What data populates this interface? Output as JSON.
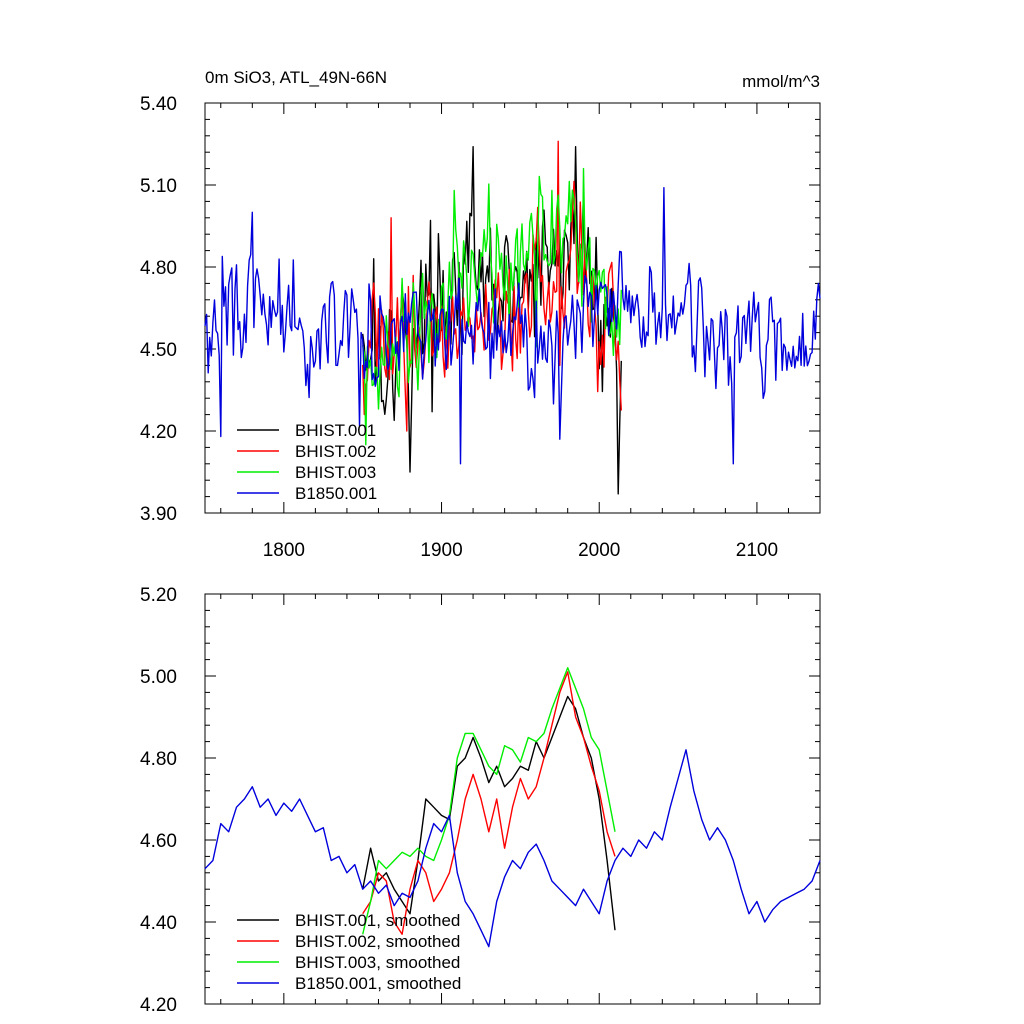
{
  "colors": {
    "BHIST.001": "#000000",
    "BHIST.002": "#ff0000",
    "BHIST.003": "#00ee00",
    "B1850.001": "#0000dd"
  },
  "chart_data": [
    {
      "type": "line",
      "title": "0m SiO3, ATL_49N-66N",
      "units": "mmol/m^3",
      "xlim": [
        1750,
        2140
      ],
      "ylim": [
        3.9,
        5.4
      ],
      "yticks": [
        3.9,
        4.2,
        4.5,
        4.8,
        5.1,
        5.4
      ],
      "ytick_labels": [
        "3.90",
        "4.20",
        "4.50",
        "4.80",
        "5.10",
        "5.40"
      ],
      "xticks": [
        1800,
        1900,
        2000,
        2100
      ],
      "xtick_labels": [
        "1800",
        "1900",
        "2000",
        "2100"
      ],
      "legend_position": "bottom-left",
      "series": [
        {
          "name": "BHIST.001",
          "x_start": 1850,
          "x_end": 2014,
          "mean": [
            [
              1850,
              4.55
            ],
            [
              1870,
              4.48
            ],
            [
              1890,
              4.62
            ],
            [
              1910,
              4.75
            ],
            [
              1930,
              4.72
            ],
            [
              1950,
              4.7
            ],
            [
              1970,
              4.8
            ],
            [
              1985,
              4.9
            ],
            [
              2000,
              4.7
            ],
            [
              2014,
              4.45
            ]
          ],
          "sd": 0.17,
          "extremes": [
            [
              1920,
              5.24
            ],
            [
              1985,
              5.24
            ],
            [
              1880,
              4.05
            ],
            [
              2012,
              3.97
            ],
            [
              1857,
              4.83
            ],
            [
              1893,
              4.97
            ]
          ]
        },
        {
          "name": "BHIST.002",
          "x_start": 1850,
          "x_end": 2014,
          "mean": [
            [
              1850,
              4.52
            ],
            [
              1870,
              4.5
            ],
            [
              1890,
              4.55
            ],
            [
              1910,
              4.65
            ],
            [
              1930,
              4.62
            ],
            [
              1950,
              4.62
            ],
            [
              1970,
              4.72
            ],
            [
              1985,
              4.85
            ],
            [
              2000,
              4.6
            ],
            [
              2014,
              4.5
            ]
          ],
          "sd": 0.16,
          "extremes": [
            [
              1974,
              5.26
            ],
            [
              1868,
              4.98
            ],
            [
              1878,
              4.2
            ]
          ]
        },
        {
          "name": "BHIST.003",
          "x_start": 1850,
          "x_end": 2014,
          "mean": [
            [
              1850,
              4.45
            ],
            [
              1870,
              4.48
            ],
            [
              1890,
              4.62
            ],
            [
              1910,
              4.78
            ],
            [
              1930,
              4.8
            ],
            [
              1950,
              4.75
            ],
            [
              1970,
              4.88
            ],
            [
              1985,
              4.95
            ],
            [
              2000,
              4.75
            ],
            [
              2014,
              4.5
            ]
          ],
          "sd": 0.16,
          "extremes": [
            [
              1970,
              5.08
            ],
            [
              1990,
              5.16
            ],
            [
              1908,
              5.08
            ],
            [
              1852,
              4.15
            ]
          ]
        },
        {
          "name": "B1850.001",
          "x_start": 1750,
          "x_end": 2140,
          "mean": [
            [
              1750,
              4.6
            ],
            [
              1780,
              4.65
            ],
            [
              1800,
              4.62
            ],
            [
              1830,
              4.55
            ],
            [
              1860,
              4.55
            ],
            [
              1900,
              4.58
            ],
            [
              1930,
              4.52
            ],
            [
              1960,
              4.55
            ],
            [
              1980,
              4.52
            ],
            [
              2000,
              4.6
            ],
            [
              2040,
              4.65
            ],
            [
              2070,
              4.58
            ],
            [
              2100,
              4.5
            ],
            [
              2140,
              4.55
            ]
          ],
          "sd": 0.13,
          "extremes": [
            [
              1780,
              5.0
            ],
            [
              2041,
              5.09
            ],
            [
              1760,
              4.18
            ],
            [
              1912,
              4.08
            ],
            [
              2085,
              4.08
            ],
            [
              1975,
              4.17
            ],
            [
              1848,
              4.22
            ]
          ]
        }
      ]
    },
    {
      "type": "line",
      "title": "",
      "xlim": [
        1750,
        2140
      ],
      "ylim": [
        4.2,
        5.2
      ],
      "yticks": [
        4.2,
        4.4,
        4.6,
        4.8,
        5.0,
        5.2
      ],
      "ytick_labels": [
        "4.20",
        "4.40",
        "4.60",
        "4.80",
        "5.00",
        "5.20"
      ],
      "xticks": [
        1800,
        1900,
        2000,
        2100
      ],
      "legend_position": "bottom-left",
      "series": [
        {
          "name": "BHIST.001, smoothed",
          "x": [
            1850,
            1855,
            1860,
            1865,
            1870,
            1875,
            1880,
            1885,
            1890,
            1895,
            1900,
            1905,
            1910,
            1915,
            1920,
            1925,
            1930,
            1935,
            1940,
            1945,
            1950,
            1955,
            1960,
            1965,
            1970,
            1975,
            1980,
            1985,
            1990,
            1995,
            2000,
            2005,
            2010
          ],
          "y": [
            4.48,
            4.58,
            4.5,
            4.52,
            4.48,
            4.45,
            4.42,
            4.55,
            4.7,
            4.68,
            4.66,
            4.65,
            4.78,
            4.8,
            4.85,
            4.8,
            4.74,
            4.78,
            4.73,
            4.75,
            4.78,
            4.77,
            4.84,
            4.8,
            4.85,
            4.9,
            4.95,
            4.92,
            4.85,
            4.8,
            4.7,
            4.55,
            4.38
          ]
        },
        {
          "name": "BHIST.002, smoothed",
          "x": [
            1850,
            1855,
            1860,
            1865,
            1870,
            1875,
            1880,
            1885,
            1890,
            1895,
            1900,
            1905,
            1910,
            1915,
            1920,
            1925,
            1930,
            1935,
            1940,
            1945,
            1950,
            1955,
            1960,
            1965,
            1970,
            1975,
            1980,
            1985,
            1990,
            1995,
            2000,
            2005,
            2010
          ],
          "y": [
            4.42,
            4.45,
            4.52,
            4.5,
            4.4,
            4.37,
            4.48,
            4.55,
            4.52,
            4.45,
            4.48,
            4.52,
            4.6,
            4.7,
            4.76,
            4.7,
            4.62,
            4.7,
            4.58,
            4.68,
            4.75,
            4.7,
            4.73,
            4.8,
            4.88,
            4.96,
            5.01,
            4.9,
            4.85,
            4.78,
            4.72,
            4.62,
            4.56
          ]
        },
        {
          "name": "BHIST.003, smoothed",
          "x": [
            1850,
            1855,
            1860,
            1865,
            1870,
            1875,
            1880,
            1885,
            1890,
            1895,
            1900,
            1905,
            1910,
            1915,
            1920,
            1925,
            1930,
            1935,
            1940,
            1945,
            1950,
            1955,
            1960,
            1965,
            1970,
            1975,
            1980,
            1985,
            1990,
            1995,
            2000,
            2005,
            2010
          ],
          "y": [
            4.37,
            4.45,
            4.55,
            4.53,
            4.55,
            4.57,
            4.56,
            4.58,
            4.56,
            4.55,
            4.6,
            4.66,
            4.8,
            4.86,
            4.86,
            4.82,
            4.78,
            4.76,
            4.83,
            4.82,
            4.79,
            4.85,
            4.84,
            4.86,
            4.92,
            4.97,
            5.02,
            4.97,
            4.92,
            4.85,
            4.82,
            4.72,
            4.62
          ]
        },
        {
          "name": "B1850.001, smoothed",
          "x": [
            1750,
            1755,
            1760,
            1765,
            1770,
            1775,
            1780,
            1785,
            1790,
            1795,
            1800,
            1805,
            1810,
            1815,
            1820,
            1825,
            1830,
            1835,
            1840,
            1845,
            1850,
            1855,
            1860,
            1865,
            1870,
            1875,
            1880,
            1885,
            1890,
            1895,
            1900,
            1905,
            1910,
            1915,
            1920,
            1925,
            1930,
            1935,
            1940,
            1945,
            1950,
            1955,
            1960,
            1965,
            1970,
            1975,
            1980,
            1985,
            1990,
            1995,
            2000,
            2005,
            2010,
            2015,
            2020,
            2025,
            2030,
            2035,
            2040,
            2045,
            2050,
            2055,
            2060,
            2065,
            2070,
            2075,
            2080,
            2085,
            2090,
            2095,
            2100,
            2105,
            2110,
            2115,
            2120,
            2125,
            2130,
            2135,
            2140
          ],
          "y": [
            4.53,
            4.55,
            4.64,
            4.62,
            4.68,
            4.7,
            4.73,
            4.68,
            4.7,
            4.66,
            4.69,
            4.67,
            4.7,
            4.66,
            4.62,
            4.63,
            4.55,
            4.56,
            4.52,
            4.54,
            4.48,
            4.5,
            4.47,
            4.49,
            4.44,
            4.47,
            4.46,
            4.5,
            4.58,
            4.64,
            4.62,
            4.66,
            4.52,
            4.45,
            4.42,
            4.38,
            4.34,
            4.45,
            4.51,
            4.55,
            4.53,
            4.57,
            4.59,
            4.55,
            4.5,
            4.48,
            4.46,
            4.44,
            4.48,
            4.45,
            4.42,
            4.5,
            4.55,
            4.58,
            4.56,
            4.6,
            4.58,
            4.62,
            4.6,
            4.68,
            4.75,
            4.82,
            4.72,
            4.65,
            4.6,
            4.63,
            4.6,
            4.55,
            4.48,
            4.42,
            4.45,
            4.4,
            4.43,
            4.45,
            4.46,
            4.47,
            4.48,
            4.5,
            4.55
          ]
        }
      ]
    }
  ]
}
